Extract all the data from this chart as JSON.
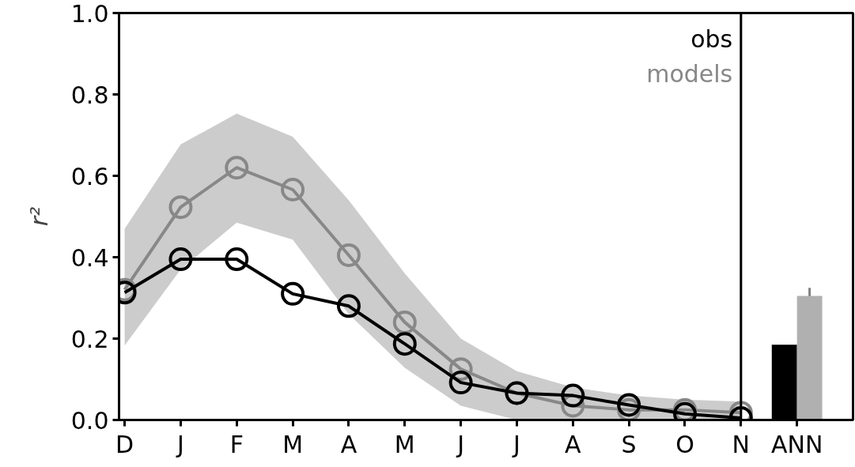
{
  "chart_data": {
    "type": "line",
    "ylabel": "r²",
    "categories": [
      "D",
      "J",
      "F",
      "M",
      "A",
      "M",
      "J",
      "J",
      "A",
      "S",
      "O",
      "N",
      "ANN"
    ],
    "ylim": [
      0,
      1.0
    ],
    "yticks": [
      {
        "value": 0,
        "label": "0.0"
      },
      {
        "value": 0.2,
        "label": "0.2"
      },
      {
        "value": 0.4,
        "label": "0.4"
      },
      {
        "value": 0.6,
        "label": "0.6"
      },
      {
        "value": 0.8,
        "label": "0.8"
      },
      {
        "value": 1.0,
        "label": "1.0"
      }
    ],
    "grid": false,
    "legend": "top right",
    "marker": "circle",
    "ref_lines": [
      {
        "axis": "x",
        "value": "N",
        "color": "#000000"
      }
    ],
    "series": [
      {
        "name": "models",
        "color": "#888888",
        "values": [
          0.32,
          0.523,
          0.62,
          0.566,
          0.405,
          0.24,
          0.125,
          0.066,
          0.035,
          0.025,
          0.025,
          0.018,
          null
        ],
        "lower": [
          0.183,
          0.37,
          0.485,
          0.443,
          0.26,
          0.128,
          0.035,
          0.0,
          0.0,
          0.0,
          0.0,
          0.0,
          null
        ],
        "upper": [
          0.47,
          0.677,
          0.753,
          0.696,
          0.54,
          0.36,
          0.2,
          0.12,
          0.08,
          0.06,
          0.05,
          0.045,
          null
        ]
      },
      {
        "name": "obs",
        "color": "#000000",
        "values": [
          0.313,
          0.395,
          0.395,
          0.31,
          0.28,
          0.187,
          0.092,
          0.066,
          0.06,
          0.037,
          0.015,
          0.005,
          null
        ]
      },
      {
        "type": "bar",
        "color": "#000000",
        "values": [
          null,
          null,
          null,
          null,
          null,
          null,
          null,
          null,
          null,
          null,
          null,
          null,
          0.185
        ]
      },
      {
        "type": "bar",
        "color": "#b0b0b0",
        "values": [
          null,
          null,
          null,
          null,
          null,
          null,
          null,
          null,
          null,
          null,
          null,
          null,
          0.305
        ],
        "errors": [
          null,
          null,
          null,
          null,
          null,
          null,
          null,
          null,
          null,
          null,
          null,
          null,
          0.02
        ]
      }
    ]
  }
}
